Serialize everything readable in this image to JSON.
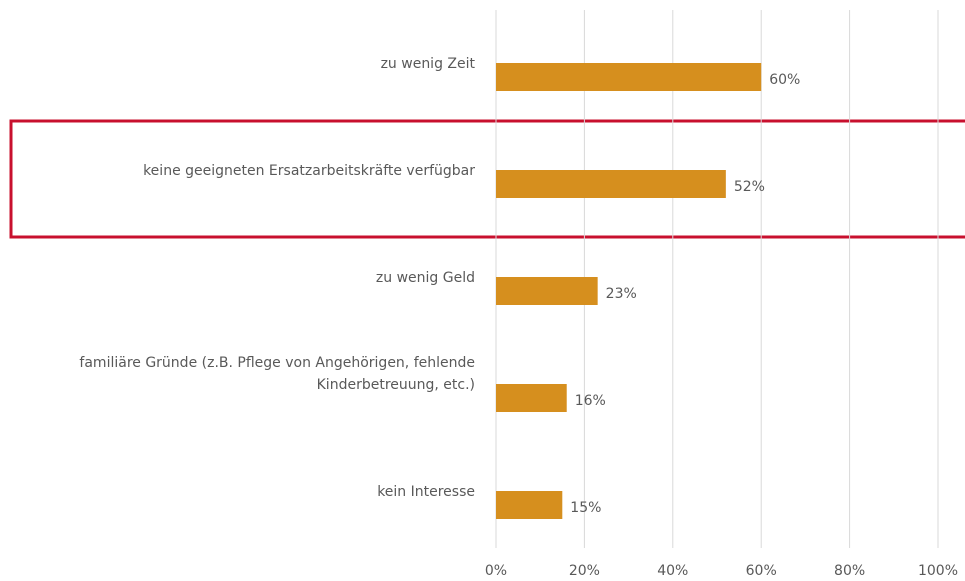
{
  "chart_data": {
    "type": "barh",
    "categories": [
      "zu wenig Zeit",
      "keine geeigneten Ersatzarbeitskräfte verfügbar",
      "zu wenig Geld",
      "familiäre Gründe (z.B. Pflege von Angehörigen, fehlende Kinderbetreuung, etc.)",
      "kein Interesse"
    ],
    "values": [
      60,
      52,
      23,
      16,
      15
    ],
    "value_labels": [
      "60%",
      "52%",
      "23%",
      "16%",
      "15%"
    ],
    "color": "#d68f1e",
    "xlim": [
      0,
      100
    ],
    "xticks": [
      {
        "value": 0,
        "label": "0%"
      },
      {
        "value": 20,
        "label": "20%"
      },
      {
        "value": 40,
        "label": "40%"
      },
      {
        "value": 60,
        "label": "60%"
      },
      {
        "value": 80,
        "label": "80%"
      },
      {
        "value": 100,
        "label": "100%"
      }
    ],
    "grid": true
  }
}
